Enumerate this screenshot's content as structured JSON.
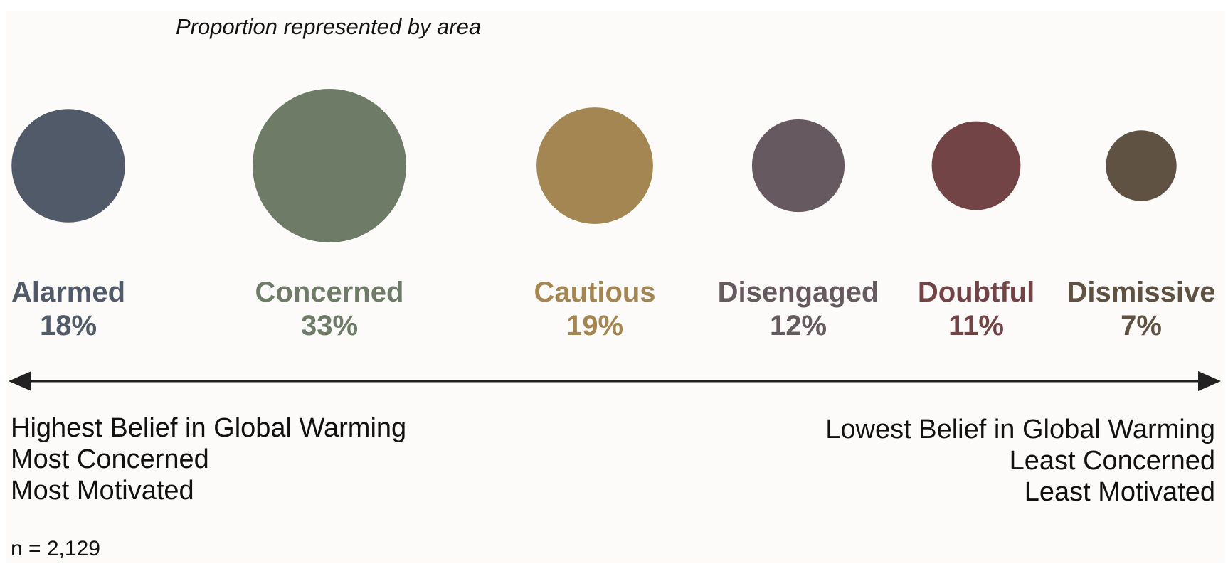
{
  "chart_data": {
    "type": "bubble",
    "subtitle": "Proportion represented by area",
    "categories": [
      "Alarmed",
      "Concerned",
      "Cautious",
      "Disengaged",
      "Doubtful",
      "Dismissive"
    ],
    "values": [
      18,
      33,
      19,
      12,
      11,
      7
    ],
    "value_labels": [
      "18%",
      "33%",
      "19%",
      "12%",
      "11%",
      "7%"
    ],
    "colors": [
      "#515a69",
      "#6e7b66",
      "#a38652",
      "#66595f",
      "#734445",
      "#5f5242"
    ],
    "size_encoding": "area",
    "axis": {
      "direction": "bidirectional",
      "left_labels": [
        "Highest Belief in Global Warming",
        "Most Concerned",
        "Most Motivated"
      ],
      "right_labels": [
        "Lowest Belief in Global Warming",
        "Least Concerned",
        "Least Motivated"
      ]
    },
    "sample_size": "n = 2,129"
  }
}
